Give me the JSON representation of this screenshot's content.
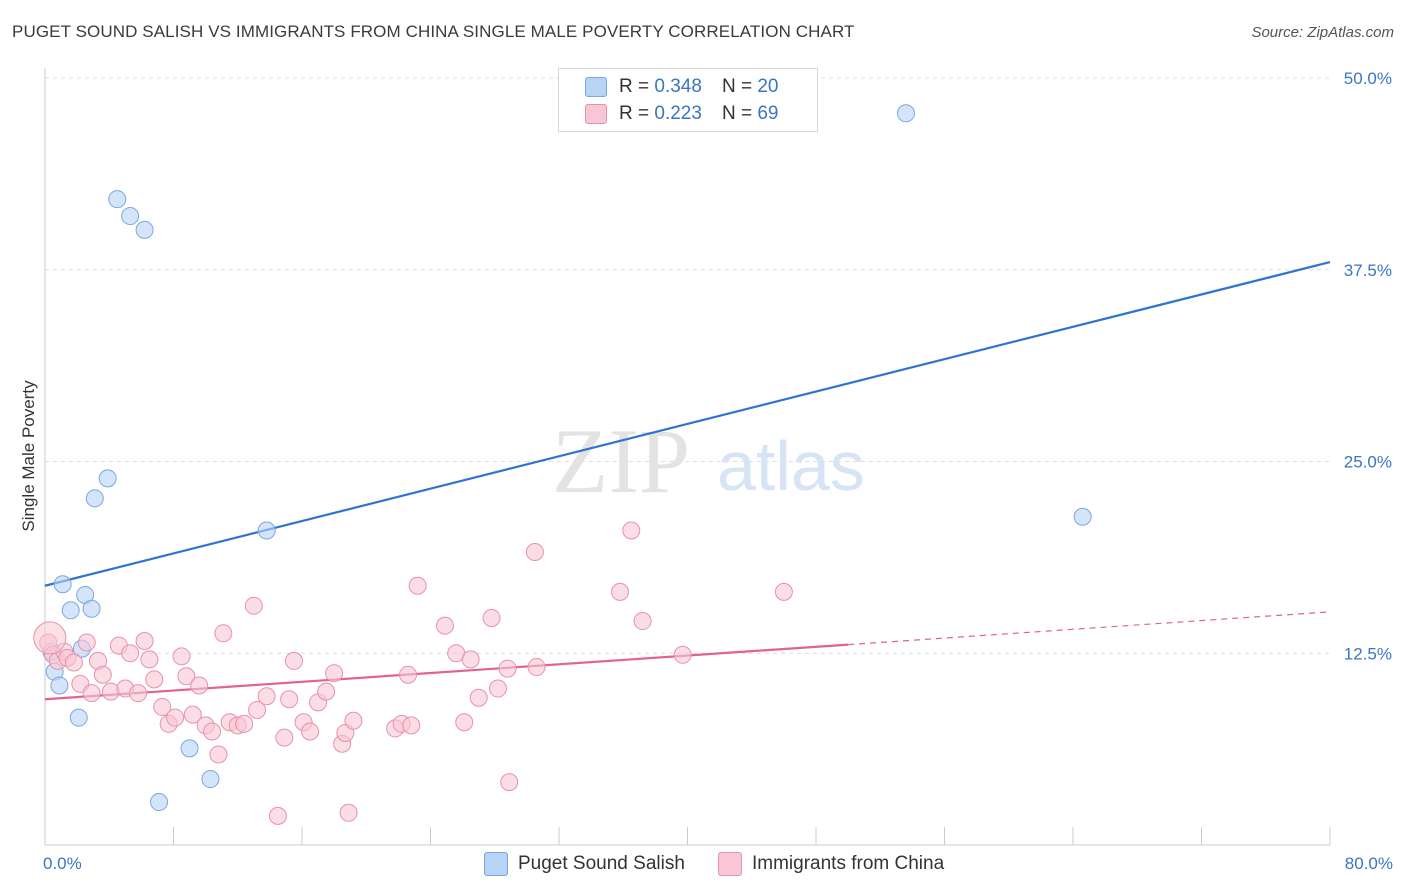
{
  "title": "PUGET SOUND SALISH VS IMMIGRANTS FROM CHINA SINGLE MALE POVERTY CORRELATION CHART",
  "source": "Source: ZipAtlas.com",
  "watermark": {
    "zip": "ZIP",
    "atlas": "atlas"
  },
  "legend": {
    "r_label": "R =",
    "n_label": "N =",
    "series1": {
      "r": "0.348",
      "n": "20"
    },
    "series2": {
      "r": "0.223",
      "n": "69"
    }
  },
  "colors": {
    "blue_fill": "#b8d4f5",
    "blue_stroke": "#7aa7e0",
    "blue_line": "#2f74d0",
    "pink_fill": "#f8c6d4",
    "pink_stroke": "#e891ab",
    "pink_line": "#e0648c",
    "axis_text": "#3a75c4"
  },
  "chart_data": {
    "type": "scatter",
    "title": "PUGET SOUND SALISH VS IMMIGRANTS FROM CHINA SINGLE MALE POVERTY CORRELATION CHART",
    "xlabel": "",
    "ylabel": "Single Male Poverty",
    "xlim": [
      0,
      80
    ],
    "ylim": [
      0,
      50
    ],
    "x_tick_labels": [
      "0.0%",
      "80.0%"
    ],
    "y_ticks": [
      12.5,
      25.0,
      37.5,
      50.0
    ],
    "y_tick_labels": [
      "12.5%",
      "25.0%",
      "37.5%",
      "50.0%"
    ],
    "grid": true,
    "series": [
      {
        "name": "Puget Sound Salish",
        "color": "blue",
        "r": 0.348,
        "n": 20,
        "points": [
          [
            0.4,
            12.6
          ],
          [
            0.6,
            11.3
          ],
          [
            0.9,
            10.4
          ],
          [
            1.1,
            17.0
          ],
          [
            1.6,
            15.3
          ],
          [
            2.3,
            12.8
          ],
          [
            2.5,
            16.3
          ],
          [
            2.9,
            15.4
          ],
          [
            2.1,
            8.3
          ],
          [
            3.1,
            22.6
          ],
          [
            3.9,
            23.9
          ],
          [
            4.5,
            42.1
          ],
          [
            5.3,
            41.0
          ],
          [
            6.2,
            40.1
          ],
          [
            7.1,
            2.8
          ],
          [
            9.0,
            6.3
          ],
          [
            10.3,
            4.3
          ],
          [
            13.8,
            20.5
          ],
          [
            53.6,
            47.7
          ],
          [
            64.6,
            21.4
          ]
        ],
        "trend": {
          "x": [
            0,
            80
          ],
          "y": [
            16.9,
            38.0
          ],
          "dashed_from": null
        }
      },
      {
        "name": "Immigrants from China",
        "color": "pink",
        "r": 0.223,
        "n": 69,
        "points": [
          [
            0.2,
            13.2
          ],
          [
            0.5,
            12.4
          ],
          [
            0.8,
            12.0
          ],
          [
            1.2,
            12.6
          ],
          [
            1.4,
            12.2
          ],
          [
            1.8,
            11.9
          ],
          [
            2.2,
            10.5
          ],
          [
            2.6,
            13.2
          ],
          [
            2.9,
            9.9
          ],
          [
            3.3,
            12.0
          ],
          [
            3.6,
            11.1
          ],
          [
            4.1,
            10.0
          ],
          [
            4.6,
            13.0
          ],
          [
            5.0,
            10.2
          ],
          [
            5.3,
            12.5
          ],
          [
            5.8,
            9.9
          ],
          [
            6.2,
            13.3
          ],
          [
            6.5,
            12.1
          ],
          [
            6.8,
            10.8
          ],
          [
            7.3,
            9.0
          ],
          [
            7.7,
            7.9
          ],
          [
            8.1,
            8.3
          ],
          [
            8.5,
            12.3
          ],
          [
            8.8,
            11.0
          ],
          [
            9.2,
            8.5
          ],
          [
            9.6,
            10.4
          ],
          [
            10.0,
            7.8
          ],
          [
            10.4,
            7.4
          ],
          [
            10.8,
            5.9
          ],
          [
            11.1,
            13.8
          ],
          [
            11.5,
            8.0
          ],
          [
            12.0,
            7.8
          ],
          [
            12.4,
            7.9
          ],
          [
            13.2,
            8.8
          ],
          [
            13.0,
            15.6
          ],
          [
            13.8,
            9.7
          ],
          [
            14.5,
            1.9
          ],
          [
            14.9,
            7.0
          ],
          [
            15.2,
            9.5
          ],
          [
            15.5,
            12.0
          ],
          [
            16.1,
            8.0
          ],
          [
            16.5,
            7.4
          ],
          [
            17.0,
            9.3
          ],
          [
            17.5,
            10.0
          ],
          [
            18.0,
            11.2
          ],
          [
            18.5,
            6.6
          ],
          [
            18.7,
            7.3
          ],
          [
            18.9,
            2.1
          ],
          [
            19.2,
            8.1
          ],
          [
            21.8,
            7.6
          ],
          [
            22.2,
            7.9
          ],
          [
            22.6,
            11.1
          ],
          [
            22.8,
            7.8
          ],
          [
            23.2,
            16.9
          ],
          [
            24.9,
            14.3
          ],
          [
            25.6,
            12.5
          ],
          [
            26.1,
            8.0
          ],
          [
            26.5,
            12.1
          ],
          [
            27.0,
            9.6
          ],
          [
            27.8,
            14.8
          ],
          [
            28.2,
            10.2
          ],
          [
            28.8,
            11.5
          ],
          [
            28.9,
            4.1
          ],
          [
            30.6,
            11.6
          ],
          [
            30.5,
            19.1
          ],
          [
            35.8,
            16.5
          ],
          [
            36.5,
            20.5
          ],
          [
            37.2,
            14.6
          ],
          [
            39.7,
            12.4
          ],
          [
            46.0,
            16.5
          ]
        ],
        "trend": {
          "x": [
            0,
            80
          ],
          "y": [
            9.5,
            15.2
          ],
          "dashed_from": 50
        }
      }
    ]
  },
  "bottom_legend": {
    "series1": "Puget Sound Salish",
    "series2": "Immigrants from China"
  }
}
